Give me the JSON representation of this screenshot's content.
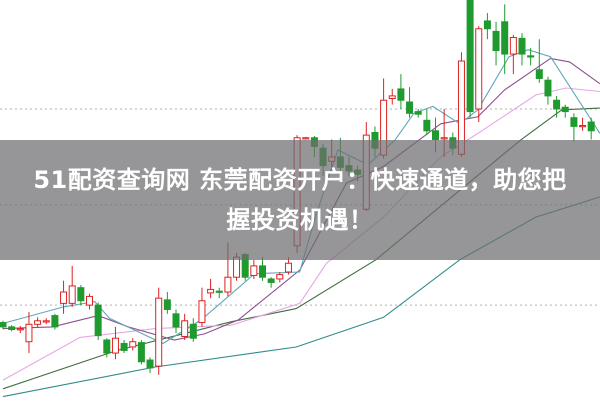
{
  "banner": {
    "line1": "51配资查询网 东莞配资开户：快速通道，助您把",
    "line2": "握投资机遇！"
  },
  "chart_data": {
    "type": "candlestick",
    "title": "",
    "xlabel": "",
    "ylabel": "",
    "ylim": [
      10,
      470
    ],
    "grid": "horizontal dotted",
    "gridlines": [
      345,
      235,
      120
    ],
    "colors": {
      "up": "#dd2222",
      "down": "#1f9a2e",
      "ma5": "#5fa7b8",
      "ma10": "#8e4f8e",
      "ma20": "#e9a6e6",
      "ma30": "#3f6f3f",
      "ma60": "#2e8b8b"
    },
    "candles": [
      [
        100,
        102,
        92,
        95
      ],
      [
        95,
        97,
        90,
        92
      ],
      [
        92,
        96,
        88,
        93
      ],
      [
        78,
        112,
        65,
        98
      ],
      [
        98,
        106,
        95,
        102
      ],
      [
        101,
        105,
        98,
        102
      ],
      [
        108,
        110,
        92,
        95
      ],
      [
        122,
        148,
        110,
        135
      ],
      [
        122,
        165,
        118,
        142
      ],
      [
        140,
        143,
        120,
        125
      ],
      [
        120,
        133,
        115,
        130
      ],
      [
        120,
        123,
        80,
        85
      ],
      [
        80,
        82,
        60,
        65
      ],
      [
        65,
        95,
        58,
        82
      ],
      [
        76,
        80,
        65,
        68
      ],
      [
        72,
        82,
        68,
        78
      ],
      [
        77,
        80,
        52,
        55
      ],
      [
        57,
        60,
        42,
        48
      ],
      [
        50,
        140,
        40,
        128
      ],
      [
        126,
        135,
        110,
        115
      ],
      [
        110,
        115,
        88,
        95
      ],
      [
        84,
        110,
        80,
        102
      ],
      [
        98,
        105,
        78,
        82
      ],
      [
        100,
        140,
        95,
        125
      ],
      [
        134,
        150,
        128,
        138
      ],
      [
        136,
        140,
        128,
        135
      ],
      [
        135,
        192,
        130,
        152
      ],
      [
        152,
        180,
        148,
        175
      ],
      [
        178,
        180,
        148,
        152
      ],
      [
        154,
        172,
        150,
        165
      ],
      [
        165,
        175,
        148,
        152
      ],
      [
        150,
        152,
        140,
        146
      ],
      [
        150,
        158,
        146,
        155
      ],
      [
        158,
        175,
        155,
        168
      ],
      [
        188,
        315,
        180,
        312
      ],
      [
        311,
        313,
        310,
        312
      ],
      [
        312,
        314,
        290,
        302
      ],
      [
        300,
        305,
        268,
        280
      ],
      [
        285,
        310,
        275,
        290
      ],
      [
        290,
        312,
        268,
        278
      ],
      [
        280,
        290,
        268,
        274
      ],
      [
        275,
        280,
        262,
        270
      ],
      [
        230,
        330,
        228,
        315
      ],
      [
        318,
        325,
        290,
        300
      ],
      [
        292,
        380,
        288,
        355
      ],
      [
        357,
        368,
        350,
        360
      ],
      [
        368,
        385,
        345,
        355
      ],
      [
        353,
        370,
        335,
        340
      ],
      [
        342,
        345,
        335,
        339
      ],
      [
        332,
        345,
        315,
        320
      ],
      [
        320,
        335,
        295,
        310
      ],
      [
        311,
        345,
        290,
        312
      ],
      [
        312,
        318,
        292,
        300
      ],
      [
        293,
        410,
        290,
        400
      ],
      [
        470,
        470,
        335,
        342
      ],
      [
        345,
        440,
        330,
        437
      ],
      [
        446,
        455,
        425,
        437
      ],
      [
        434,
        445,
        395,
        412
      ],
      [
        445,
        465,
        385,
        408
      ],
      [
        408,
        430,
        385,
        427
      ],
      [
        426,
        432,
        395,
        408
      ],
      [
        406,
        415,
        395,
        405
      ],
      [
        390,
        425,
        375,
        380
      ],
      [
        378,
        382,
        350,
        360
      ],
      [
        355,
        360,
        335,
        345
      ],
      [
        347,
        350,
        335,
        342
      ],
      [
        335,
        340,
        308,
        325
      ],
      [
        325,
        335,
        320,
        326
      ],
      [
        330,
        335,
        310,
        320
      ]
    ],
    "candle_format": [
      "open",
      "high",
      "low",
      "close"
    ],
    "moving_averages": [
      {
        "key": "ma5",
        "points": [
          [
            0,
            99
          ],
          [
            7,
            118
          ],
          [
            10.6,
            124
          ],
          [
            12.3,
            105
          ],
          [
            18.5,
            76
          ],
          [
            22.9,
            103
          ],
          [
            29.1,
            156
          ],
          [
            34.3,
            158
          ],
          [
            36.1,
            221
          ],
          [
            38.7,
            298
          ],
          [
            42.2,
            281
          ],
          [
            45.3,
            309
          ],
          [
            47.5,
            340
          ],
          [
            49.7,
            348
          ],
          [
            52.8,
            328
          ],
          [
            54.9,
            344
          ],
          [
            58.5,
            405
          ],
          [
            60.7,
            413
          ],
          [
            63.3,
            405
          ],
          [
            69,
            317
          ]
        ]
      },
      {
        "key": "ma10",
        "points": [
          [
            0,
            93
          ],
          [
            5.7,
            95
          ],
          [
            11,
            108
          ],
          [
            14.5,
            95
          ],
          [
            19.8,
            80
          ],
          [
            23.3,
            87
          ],
          [
            27.2,
            103
          ],
          [
            34.3,
            160
          ],
          [
            39.7,
            260
          ],
          [
            44,
            279
          ],
          [
            50.6,
            328
          ],
          [
            54.9,
            336
          ],
          [
            58,
            367
          ],
          [
            63.3,
            403
          ],
          [
            65.5,
            399
          ],
          [
            69,
            374
          ]
        ]
      },
      {
        "key": "ma20",
        "points": [
          [
            0,
            34
          ],
          [
            8.9,
            83
          ],
          [
            17.6,
            93
          ],
          [
            26.4,
            97
          ],
          [
            34.3,
            122
          ],
          [
            37.4,
            168
          ],
          [
            44,
            221
          ],
          [
            50.6,
            290
          ],
          [
            54.9,
            317
          ],
          [
            61.6,
            361
          ],
          [
            65.1,
            369
          ],
          [
            69,
            365
          ]
        ]
      },
      {
        "key": "ma30",
        "points": [
          [
            0,
            24
          ],
          [
            13.2,
            68
          ],
          [
            26.4,
            101
          ],
          [
            33.9,
            116
          ],
          [
            43.1,
            172
          ],
          [
            59.8,
            309
          ],
          [
            64.6,
            344
          ],
          [
            69,
            346
          ]
        ]
      },
      {
        "key": "ma60",
        "points": [
          [
            0,
            15
          ],
          [
            17.6,
            49
          ],
          [
            33.9,
            72
          ],
          [
            44,
            106
          ],
          [
            52.8,
            172
          ],
          [
            61.6,
            221
          ],
          [
            69,
            244
          ]
        ]
      }
    ]
  }
}
